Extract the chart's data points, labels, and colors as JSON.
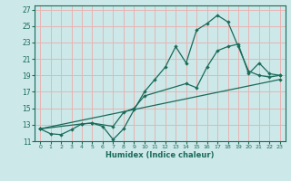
{
  "xlabel": "Humidex (Indice chaleur)",
  "background_color": "#cce8e8",
  "grid_color": "#e8b4b4",
  "line_color": "#1a6b5a",
  "xlim": [
    -0.5,
    23.5
  ],
  "ylim": [
    11,
    27.5
  ],
  "xticks": [
    0,
    1,
    2,
    3,
    4,
    5,
    6,
    7,
    8,
    9,
    10,
    11,
    12,
    13,
    14,
    15,
    16,
    17,
    18,
    19,
    20,
    21,
    22,
    23
  ],
  "yticks": [
    11,
    13,
    15,
    17,
    19,
    21,
    23,
    25,
    27
  ],
  "line1_x": [
    0,
    1,
    2,
    3,
    4,
    5,
    6,
    7,
    8,
    9,
    10,
    11,
    12,
    13,
    14,
    15,
    16,
    17,
    18,
    19,
    20,
    21,
    22,
    23
  ],
  "line1_y": [
    12.5,
    11.9,
    11.8,
    12.4,
    13.1,
    13.2,
    12.8,
    11.2,
    12.5,
    14.8,
    17.0,
    18.5,
    20.0,
    22.5,
    20.5,
    24.5,
    25.3,
    26.3,
    25.5,
    22.5,
    19.5,
    19.0,
    18.8,
    19.0
  ],
  "line2_x": [
    0,
    4,
    5,
    7,
    8,
    9,
    10,
    14,
    15,
    16,
    17,
    18,
    19,
    20,
    21,
    22,
    23
  ],
  "line2_y": [
    12.5,
    13.1,
    13.2,
    12.8,
    14.5,
    15.0,
    16.5,
    18.0,
    17.5,
    20.0,
    22.0,
    22.5,
    22.8,
    19.2,
    20.5,
    19.2,
    19.0
  ],
  "line3_x": [
    0,
    23
  ],
  "line3_y": [
    12.5,
    18.5
  ]
}
